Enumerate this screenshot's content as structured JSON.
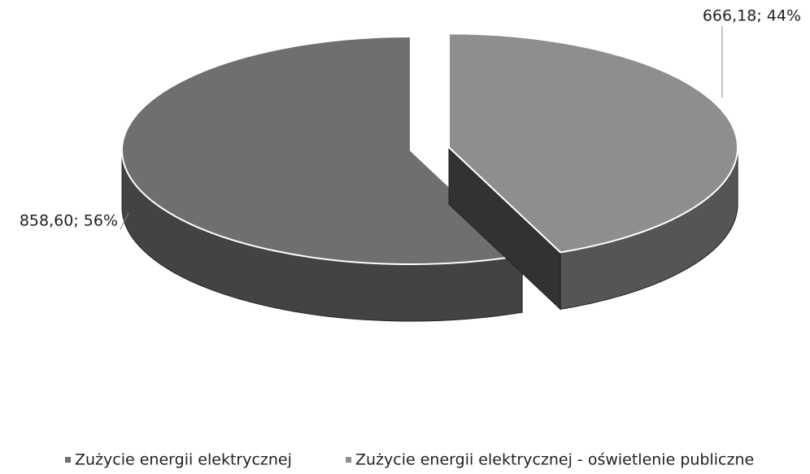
{
  "chart_data": {
    "type": "pie3d",
    "categories": [
      "Zużycie energii elektrycznej",
      "Zużycie energii elektrycznej - oświetlenie publiczne"
    ],
    "values": [
      858.6,
      666.18
    ],
    "value_labels": [
      "858,60; 56%",
      "666,18; 44%"
    ],
    "colors": [
      "#6f6f6f",
      "#8e8e8e"
    ],
    "legend": "bottom"
  }
}
